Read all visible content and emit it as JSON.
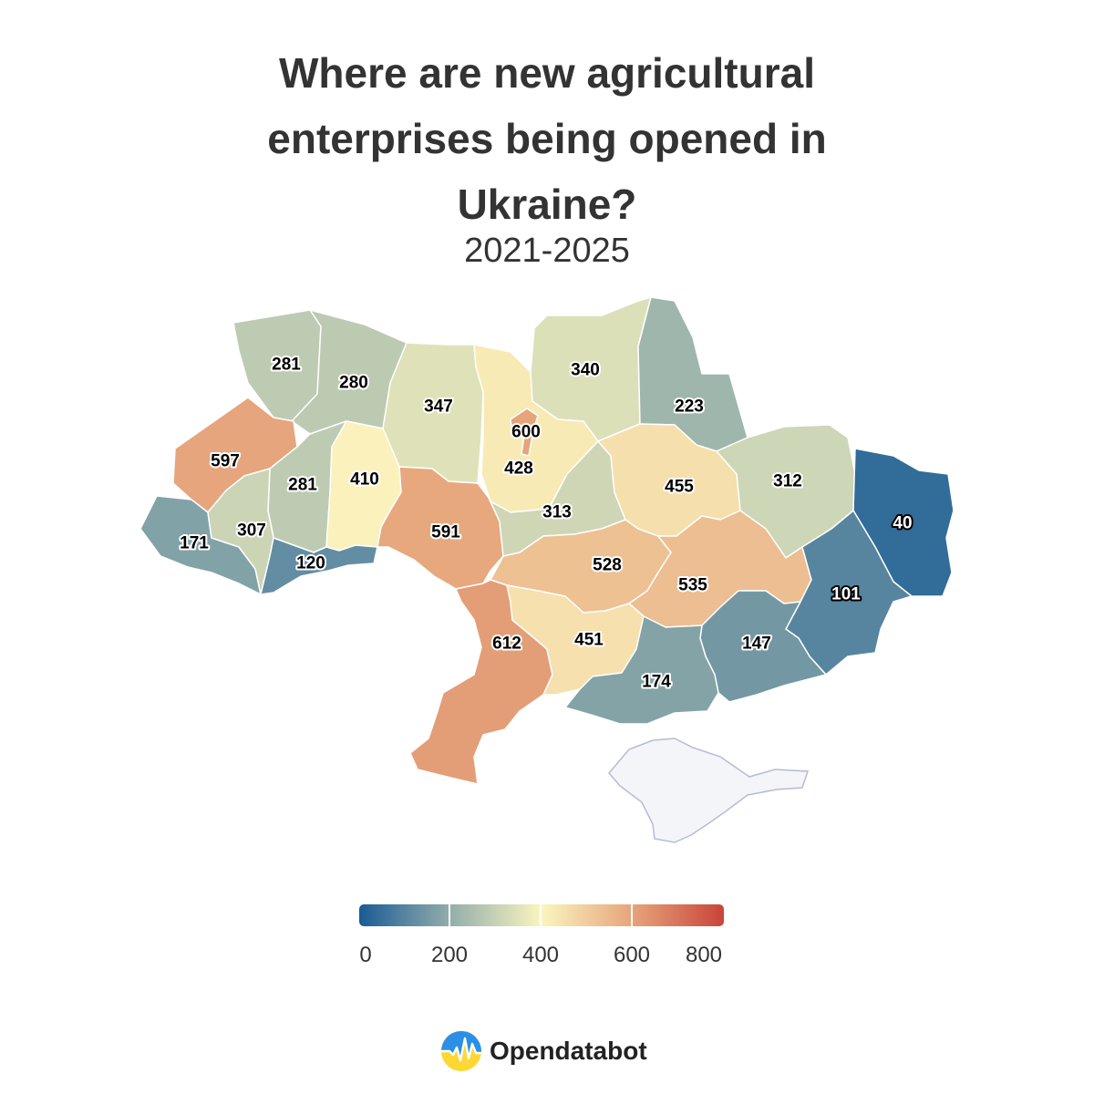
{
  "title": "Where are new agricultural enterprises being opened in Ukraine?",
  "subtitle": "2021-2025",
  "map_data": {
    "type": "choropleth",
    "regions": [
      {
        "name": "Volyn",
        "value": 281
      },
      {
        "name": "Rivne",
        "value": 280
      },
      {
        "name": "Zhytomyr",
        "value": 347
      },
      {
        "name": "Kyiv Oblast",
        "value": 428
      },
      {
        "name": "Kyiv City",
        "value": 600
      },
      {
        "name": "Chernihiv",
        "value": 340
      },
      {
        "name": "Sumy",
        "value": 223
      },
      {
        "name": "Lviv",
        "value": 597
      },
      {
        "name": "Ternopil",
        "value": 281
      },
      {
        "name": "Khmelnytskyi",
        "value": 410
      },
      {
        "name": "Zakarpattia",
        "value": 171
      },
      {
        "name": "Ivano-Frankivsk",
        "value": 307
      },
      {
        "name": "Chernivtsi",
        "value": 120
      },
      {
        "name": "Vinnytsia",
        "value": 591
      },
      {
        "name": "Cherkasy",
        "value": 313
      },
      {
        "name": "Poltava",
        "value": 455
      },
      {
        "name": "Kharkiv",
        "value": 312
      },
      {
        "name": "Luhansk",
        "value": 40
      },
      {
        "name": "Kirovohrad",
        "value": 528
      },
      {
        "name": "Dnipropetrovsk",
        "value": 535
      },
      {
        "name": "Donetsk",
        "value": 101
      },
      {
        "name": "Zaporizhzhia",
        "value": 147
      },
      {
        "name": "Odesa",
        "value": 612
      },
      {
        "name": "Mykolaiv",
        "value": 451
      },
      {
        "name": "Kherson",
        "value": 174
      }
    ],
    "no_data_region": "Crimea"
  },
  "legend": {
    "labels": [
      "0",
      "200",
      "400",
      "600",
      "800"
    ],
    "min": 0,
    "max": 800,
    "colors": [
      "#1a5b95",
      "#93aeaa",
      "#fbf5bf",
      "#e6a47b",
      "#c9443a"
    ]
  },
  "brand": {
    "name": "Opendatabot"
  }
}
